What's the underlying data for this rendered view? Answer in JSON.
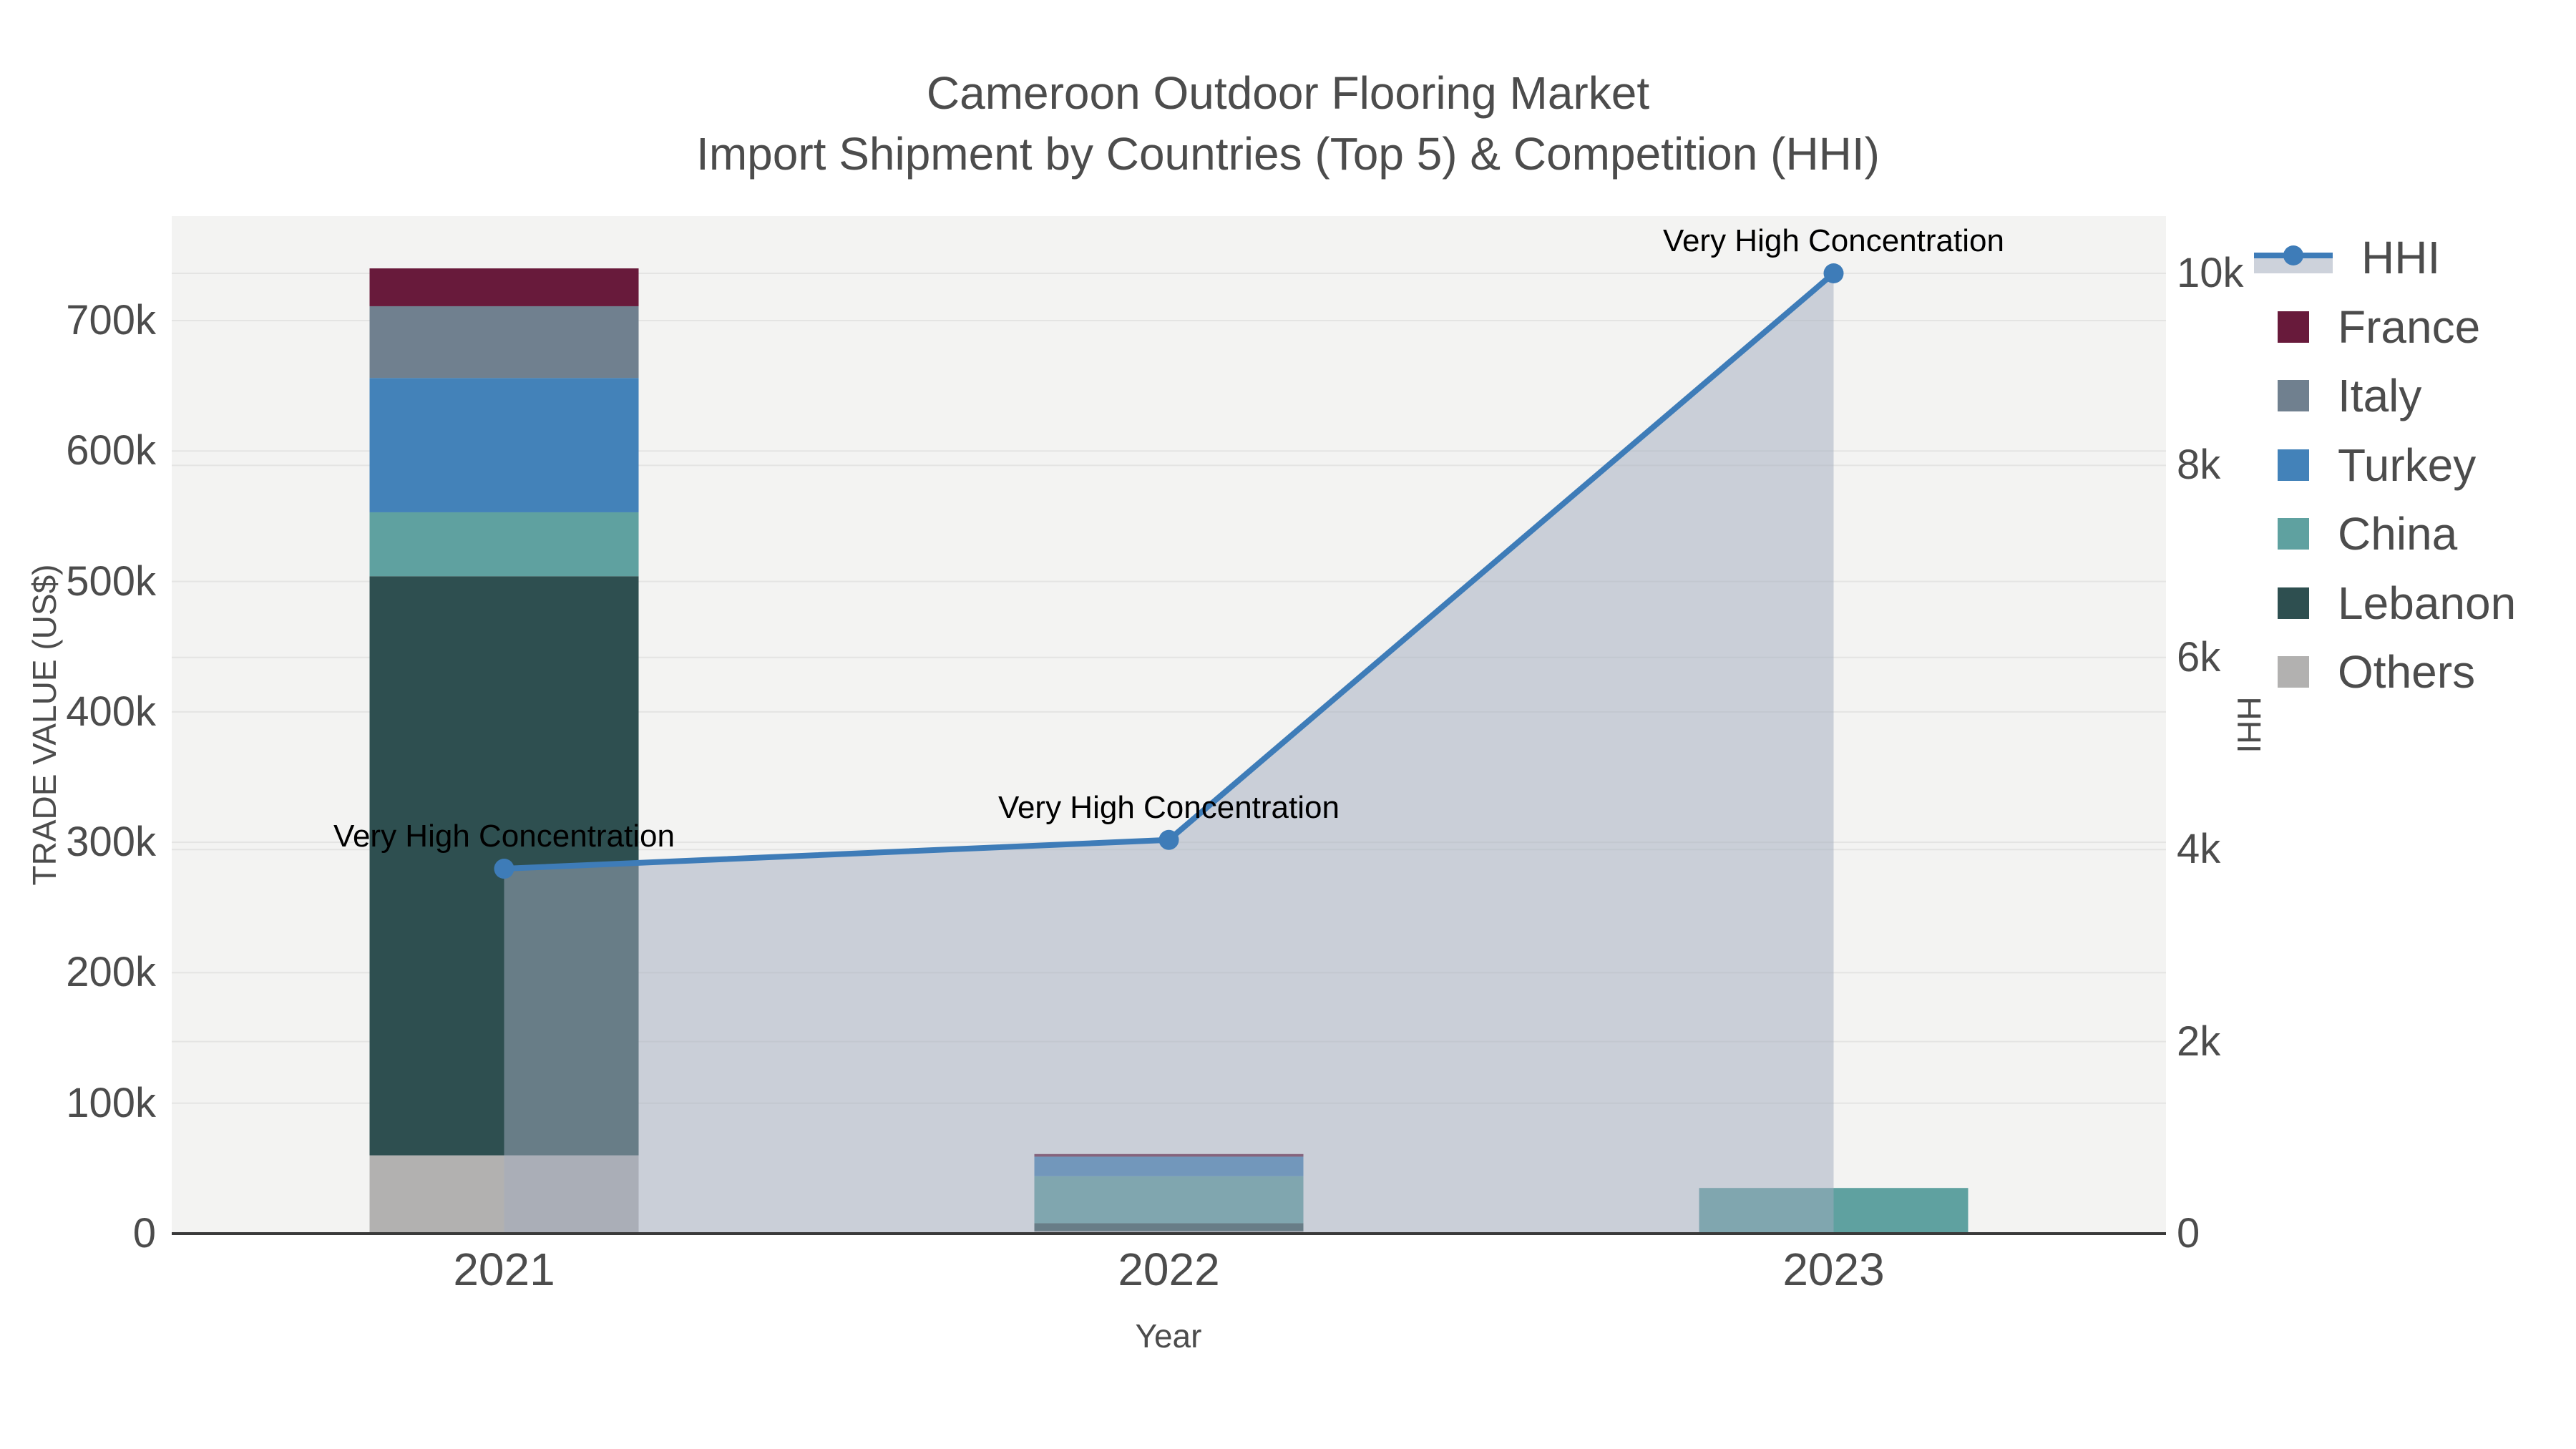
{
  "title": {
    "line1": "Cameroon Outdoor Flooring Market",
    "line2": "Import Shipment by Countries (Top 5) & Competition (HHI)"
  },
  "axes": {
    "x": {
      "title": "Year",
      "ticks": [
        "2021",
        "2022",
        "2023"
      ]
    },
    "y_left": {
      "title": "TRADE VALUE (US$)",
      "ticks": [
        "0",
        "100k",
        "200k",
        "300k",
        "400k",
        "500k",
        "600k",
        "700k"
      ],
      "tick_values": [
        0,
        100000,
        200000,
        300000,
        400000,
        500000,
        600000,
        700000
      ]
    },
    "y_right": {
      "title": "HHI",
      "ticks": [
        "0",
        "2k",
        "4k",
        "6k",
        "8k",
        "10k"
      ],
      "tick_values": [
        0,
        2000,
        4000,
        6000,
        8000,
        10000
      ]
    }
  },
  "legend": {
    "items": [
      {
        "label": "HHI",
        "type": "line",
        "color": "#3e7cb8"
      },
      {
        "label": "France",
        "type": "swatch",
        "color": "#681a3b"
      },
      {
        "label": "Italy",
        "type": "swatch",
        "color": "#70808f"
      },
      {
        "label": "Turkey",
        "type": "swatch",
        "color": "#4382b9"
      },
      {
        "label": "China",
        "type": "swatch",
        "color": "#5fa1a0"
      },
      {
        "label": "Lebanon",
        "type": "swatch",
        "color": "#2e4f50"
      },
      {
        "label": "Others",
        "type": "swatch",
        "color": "#b2b1b0"
      }
    ]
  },
  "colors": {
    "plot_bg": "#f3f3f2",
    "grid": "#e4e4e3",
    "axis_line": "#3a3a3a",
    "hhi_line": "#3e7cb8",
    "hhi_fill": "rgba(161,172,190,0.5)",
    "tick_text": "#4c4c4c",
    "annotation_text": "#000000"
  },
  "chart_data": {
    "type": "stacked-bar + line (dual y-axis)",
    "categories": [
      "2021",
      "2022",
      "2023"
    ],
    "stack_order_bottom_to_top": [
      "Others",
      "Lebanon",
      "China",
      "Turkey",
      "Italy",
      "France"
    ],
    "series": [
      {
        "name": "France",
        "axis": "left",
        "color": "#681a3b",
        "values": [
          29000,
          2000,
          0
        ]
      },
      {
        "name": "Italy",
        "axis": "left",
        "color": "#70808f",
        "values": [
          55000,
          0,
          0
        ]
      },
      {
        "name": "Turkey",
        "axis": "left",
        "color": "#4382b9",
        "values": [
          103000,
          15000,
          0
        ]
      },
      {
        "name": "China",
        "axis": "left",
        "color": "#5fa1a0",
        "values": [
          49000,
          36000,
          35000
        ]
      },
      {
        "name": "Lebanon",
        "axis": "left",
        "color": "#2e4f50",
        "values": [
          444000,
          6000,
          0
        ]
      },
      {
        "name": "Others",
        "axis": "left",
        "color": "#b2b1b0",
        "values": [
          60000,
          2000,
          0
        ]
      }
    ],
    "bar_totals": [
      740000,
      61000,
      35000
    ],
    "line_series": {
      "name": "HHI",
      "axis": "right",
      "color": "#3e7cb8",
      "fill": "tozeroy",
      "values": [
        3800,
        4100,
        10000
      ]
    },
    "annotations": [
      {
        "x": "2021",
        "y": 3800,
        "text": "Very High Concentration"
      },
      {
        "x": "2022",
        "y": 4100,
        "text": "Very High Concentration"
      },
      {
        "x": "2023",
        "y": 10000,
        "text": "Very High Concentration"
      }
    ],
    "xlabel": "Year",
    "ylabel_left": "TRADE VALUE (US$)",
    "ylabel_right": "HHI",
    "ylim_left": [
      0,
      780000
    ],
    "ylim_right": [
      0,
      10600
    ],
    "grid": true,
    "legend_position": "right"
  }
}
